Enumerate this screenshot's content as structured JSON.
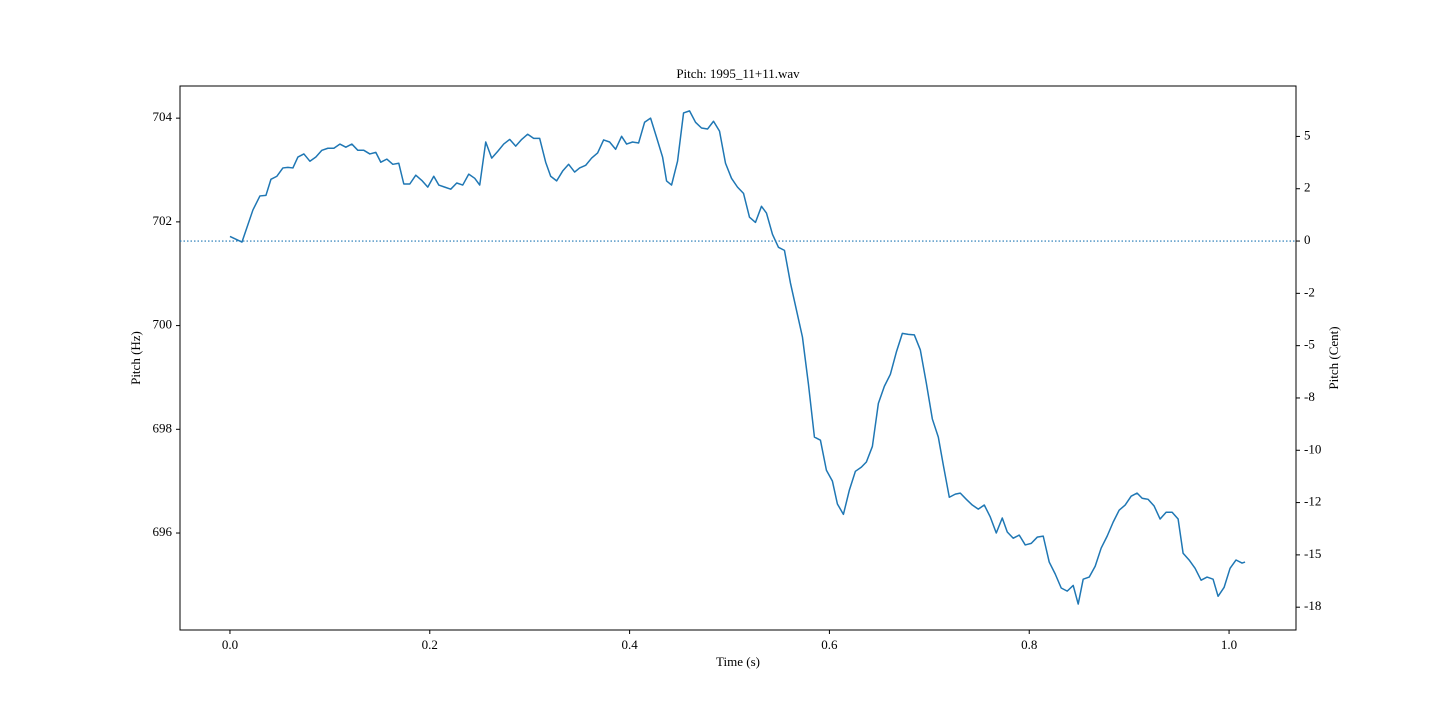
{
  "chart_data": {
    "type": "line",
    "title": "Pitch: 1995_11+11.wav",
    "xlabel": "Time (s)",
    "ylabel": "Pitch (Hz)",
    "y2label": "Pitch (Cent)",
    "x": [
      0.0,
      0.012,
      0.023,
      0.03,
      0.036,
      0.041,
      0.047,
      0.053,
      0.058,
      0.063,
      0.068,
      0.074,
      0.08,
      0.086,
      0.092,
      0.098,
      0.104,
      0.11,
      0.116,
      0.122,
      0.128,
      0.134,
      0.14,
      0.146,
      0.151,
      0.157,
      0.163,
      0.169,
      0.174,
      0.18,
      0.186,
      0.192,
      0.198,
      0.204,
      0.209,
      0.215,
      0.221,
      0.227,
      0.233,
      0.239,
      0.245,
      0.25,
      0.256,
      0.262,
      0.268,
      0.274,
      0.28,
      0.286,
      0.292,
      0.298,
      0.304,
      0.31,
      0.316,
      0.321,
      0.327,
      0.333,
      0.339,
      0.345,
      0.35,
      0.356,
      0.362,
      0.368,
      0.374,
      0.38,
      0.386,
      0.392,
      0.397,
      0.403,
      0.409,
      0.415,
      0.421,
      0.427,
      0.433,
      0.437,
      0.442,
      0.448,
      0.454,
      0.46,
      0.466,
      0.472,
      0.478,
      0.484,
      0.49,
      0.496,
      0.502,
      0.508,
      0.514,
      0.52,
      0.526,
      0.532,
      0.537,
      0.543,
      0.549,
      0.555,
      0.561,
      0.567,
      0.573,
      0.579,
      0.585,
      0.591,
      0.597,
      0.603,
      0.608,
      0.614,
      0.62,
      0.626,
      0.632,
      0.637,
      0.643,
      0.649,
      0.655,
      0.661,
      0.667,
      0.673,
      0.679,
      0.685,
      0.691,
      0.697,
      0.703,
      0.709,
      0.714,
      0.72,
      0.726,
      0.731,
      0.737,
      0.743,
      0.749,
      0.755,
      0.761,
      0.767,
      0.773,
      0.778,
      0.784,
      0.79,
      0.796,
      0.802,
      0.808,
      0.814,
      0.82,
      0.826,
      0.832,
      0.838,
      0.844,
      0.849,
      0.854,
      0.86,
      0.866,
      0.872,
      0.878,
      0.884,
      0.89,
      0.896,
      0.902,
      0.908,
      0.913,
      0.919,
      0.925,
      0.931,
      0.937,
      0.943,
      0.949,
      0.954,
      0.96,
      0.966,
      0.972,
      0.978,
      0.984,
      0.989,
      0.995,
      1.001,
      1.007,
      1.013,
      1.016
    ],
    "series": [
      {
        "color": "#1f77b4",
        "values": [
          701.72,
          701.61,
          702.23,
          702.5,
          702.51,
          702.82,
          702.88,
          703.04,
          703.05,
          703.04,
          703.25,
          703.31,
          703.17,
          703.25,
          703.38,
          703.42,
          703.42,
          703.5,
          703.44,
          703.5,
          703.38,
          703.38,
          703.31,
          703.34,
          703.15,
          703.21,
          703.11,
          703.13,
          702.73,
          702.73,
          702.9,
          702.8,
          702.67,
          702.88,
          702.71,
          702.67,
          702.63,
          702.75,
          702.71,
          702.92,
          702.84,
          702.71,
          703.54,
          703.23,
          703.36,
          703.5,
          703.59,
          703.46,
          703.59,
          703.69,
          703.61,
          703.61,
          703.15,
          702.88,
          702.79,
          702.98,
          703.11,
          702.96,
          703.04,
          703.09,
          703.23,
          703.33,
          703.58,
          703.54,
          703.4,
          703.65,
          703.5,
          703.54,
          703.52,
          703.92,
          704.0,
          703.63,
          703.25,
          702.79,
          702.71,
          703.17,
          704.1,
          704.14,
          703.92,
          703.81,
          703.79,
          703.94,
          703.75,
          703.13,
          702.84,
          702.67,
          702.55,
          702.09,
          701.99,
          702.3,
          702.17,
          701.76,
          701.51,
          701.45,
          700.82,
          700.3,
          699.78,
          698.87,
          697.85,
          697.79,
          697.21,
          697.0,
          696.56,
          696.36,
          696.83,
          697.19,
          697.27,
          697.37,
          697.67,
          698.5,
          698.83,
          699.06,
          699.49,
          699.85,
          699.83,
          699.82,
          699.53,
          698.89,
          698.2,
          697.85,
          697.31,
          696.69,
          696.75,
          696.77,
          696.65,
          696.54,
          696.46,
          696.54,
          696.31,
          696.0,
          696.29,
          696.02,
          695.9,
          695.96,
          695.77,
          695.8,
          695.92,
          695.94,
          695.44,
          695.21,
          694.94,
          694.88,
          694.99,
          694.63,
          695.11,
          695.15,
          695.36,
          695.71,
          695.94,
          696.21,
          696.44,
          696.54,
          696.71,
          696.77,
          696.67,
          696.65,
          696.52,
          696.27,
          696.4,
          696.4,
          696.27,
          695.61,
          695.48,
          695.32,
          695.09,
          695.15,
          695.11,
          694.78,
          694.95,
          695.32,
          695.48,
          695.42,
          695.44
        ]
      }
    ],
    "reference_line_y2": 0,
    "xlim": [
      -0.05,
      1.067
    ],
    "ylim": [
      694.13,
      704.62
    ],
    "y2lim": [
      -18.59,
      7.41
    ],
    "xticks": [
      {
        "value": 0,
        "label": "0.0"
      },
      {
        "value": 0.2,
        "label": "0.2"
      },
      {
        "value": 0.4,
        "label": "0.4"
      },
      {
        "value": 0.6,
        "label": "0.6"
      },
      {
        "value": 0.8,
        "label": "0.8"
      },
      {
        "value": 1.0,
        "label": "1.0"
      }
    ],
    "yticks": [
      696,
      698,
      700,
      702,
      704
    ],
    "y2ticks": [
      5,
      {
        "value": 2.5,
        "label": "2"
      },
      0,
      {
        "value": -2.5,
        "label": "-2"
      },
      -5,
      {
        "value": -7.5,
        "label": "-8"
      },
      -10,
      {
        "value": -12.5,
        "label": "-12"
      },
      -15,
      {
        "value": -17.5,
        "label": "-18"
      }
    ]
  }
}
